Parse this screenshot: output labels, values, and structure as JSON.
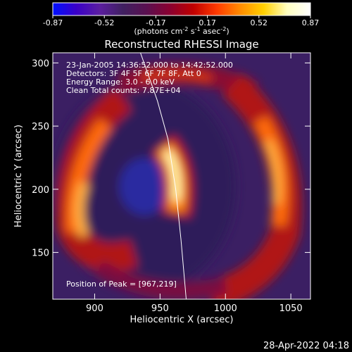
{
  "colorbar": {
    "ticks": [
      "-0.87",
      "-0.52",
      "-0.17",
      "0.17",
      "0.52",
      "0.87"
    ],
    "units_prefix": "(photons cm",
    "units_exp1": "-2",
    "units_mid": " s",
    "units_exp2": "-1",
    "units_mid2": " asec",
    "units_exp3": "-2",
    "units_suffix": ")",
    "palette": [
      "#0010ff",
      "#3a00c8",
      "#5b1ea0",
      "#402060",
      "#5a1050",
      "#8a0030",
      "#c00000",
      "#ff3a00",
      "#ff8c00",
      "#ffd000",
      "#ffffc0",
      "#ffffff"
    ]
  },
  "chart_data": {
    "type": "heatmap",
    "title": "Reconstructed RHESSI Image",
    "xlabel": "Heliocentric X (arcsec)",
    "ylabel": "Heliocentric Y (arcsec)",
    "xlim": [
      868,
      1065
    ],
    "ylim": [
      113,
      308
    ],
    "xticks": [
      900,
      950,
      1000,
      1050
    ],
    "yticks": [
      150,
      200,
      250,
      300
    ],
    "annotations": [
      "23-Jan-2005 14:36:52.000 to 14:42:52.000",
      "Detectors: 3F 4F 5F 6F 7F 8F, Att 0",
      "Energy Range: 3.0 - 6.0 keV",
      "Clean     Total counts: 7.87E+04"
    ],
    "peak_label": "Position of Peak = [967,219]",
    "peak": [
      967,
      219
    ],
    "color_range": [
      -0.87,
      0.87
    ],
    "sources": [
      {
        "name": "central-arc",
        "x": 961,
        "y": 222,
        "intensity": 0.87
      },
      {
        "name": "left-ring",
        "x": 895,
        "y": 185,
        "intensity": 0.55
      },
      {
        "name": "right-ring",
        "x": 1040,
        "y": 210,
        "intensity": 0.55
      }
    ],
    "limb": [
      [
        935,
        308
      ],
      [
        948,
        270
      ],
      [
        956,
        240
      ],
      [
        962,
        200
      ],
      [
        966,
        160
      ],
      [
        970,
        113
      ]
    ]
  },
  "footer": {
    "timestamp": "28-Apr-2022 04:18"
  }
}
